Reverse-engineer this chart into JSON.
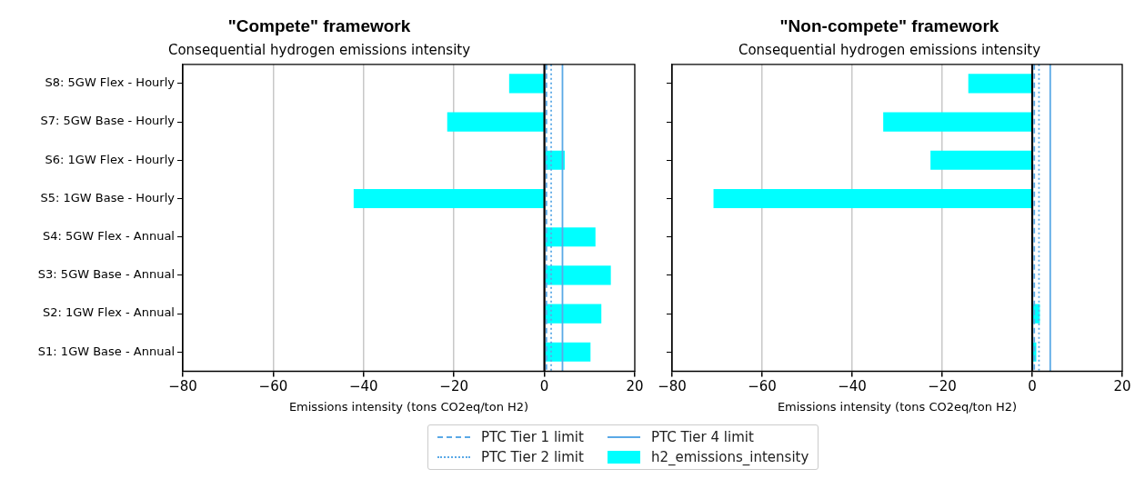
{
  "chart_data": [
    {
      "type": "bar",
      "orientation": "horizontal",
      "title": "\"Compete\" framework",
      "subtitle": "Consequential hydrogen emissions intensity",
      "xlabel": "Emissions intensity (tons CO2eq/ton H2)",
      "categories": [
        "S8: 5GW Flex - Hourly",
        "S7: 5GW Base - Hourly",
        "S6: 1GW Flex - Hourly",
        "S5: 1GW Base - Hourly",
        "S4: 5GW Flex - Annual",
        "S3: 5GW Base - Annual",
        "S2: 1GW Flex - Annual",
        "S1: 1GW Base - Annual"
      ],
      "series": [
        {
          "name": "h2_emissions_intensity",
          "color": "#00ffff",
          "values": [
            -7.8,
            -21.5,
            4.5,
            -42.2,
            11.3,
            14.7,
            12.6,
            10.2
          ]
        }
      ],
      "xlim": [
        -80,
        20
      ],
      "xticks": [
        -80,
        -60,
        -40,
        -20,
        0,
        20
      ],
      "grid": "x",
      "legend": "bottom",
      "ref_lines": [
        {
          "axis": "x",
          "value": 0,
          "color": "#000000",
          "line_style": "solid"
        },
        {
          "axis": "x",
          "value": 0.45,
          "label": "PTC Tier 1 limit",
          "color": "#5aa9e6",
          "line_style": "dashed"
        },
        {
          "axis": "x",
          "value": 1.5,
          "label": "PTC Tier 2 limit",
          "color": "#5aa9e6",
          "line_style": "dotted"
        },
        {
          "axis": "x",
          "value": 4,
          "label": "PTC Tier 4 limit",
          "color": "#5aa9e6",
          "line_style": "solid"
        }
      ]
    },
    {
      "type": "bar",
      "orientation": "horizontal",
      "title": "\"Non-compete\" framework",
      "subtitle": "Consequential hydrogen emissions intensity",
      "xlabel": "Emissions intensity (tons CO2eq/ton H2)",
      "categories": [
        null,
        null,
        null,
        null,
        null,
        null,
        null,
        null
      ],
      "series": [
        {
          "color": "#00ffff",
          "values": [
            -14.2,
            -33.1,
            -22.6,
            -70.8,
            0.2,
            0.2,
            1.7,
            0.9
          ]
        }
      ],
      "xlim": [
        -80,
        20
      ],
      "xticks": [
        -80,
        -60,
        -40,
        -20,
        0,
        20
      ],
      "grid": "x",
      "tick_labels": "x",
      "ref_lines": [
        {
          "axis": "x",
          "value": 0,
          "color": "#000000",
          "line_style": "solid"
        },
        {
          "axis": "x",
          "value": 0.45,
          "color": "#5aa9e6",
          "line_style": "dashed"
        },
        {
          "axis": "x",
          "value": 1.5,
          "color": "#5aa9e6",
          "line_style": "dotted"
        },
        {
          "axis": "x",
          "value": 4,
          "color": "#5aa9e6",
          "line_style": "solid"
        }
      ]
    }
  ]
}
